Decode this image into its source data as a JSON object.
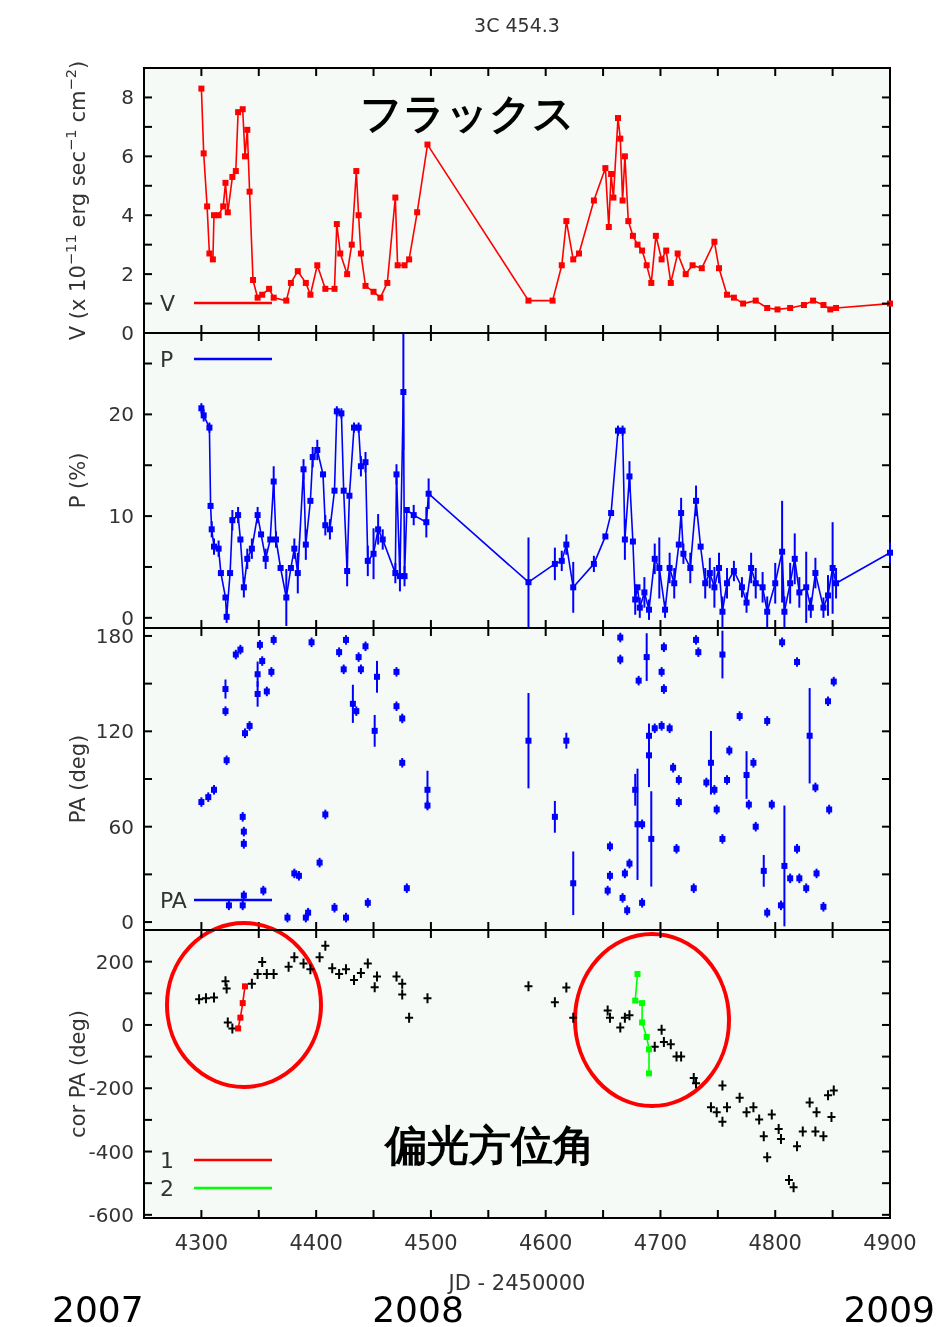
{
  "chart_data": [
    {
      "type": "line",
      "title": "3C 454.3",
      "ylabel": "V (x 10$^{−11}$ erg sec$^{−1}$ cm$^{−2}$)",
      "annotations": [
        "フラックス"
      ],
      "xlim": [
        4250,
        4900
      ],
      "ylim": [
        0,
        9
      ],
      "xticks": [
        4300,
        {
          "value": 4350,
          "label": null
        },
        4400,
        {
          "value": 4450,
          "label": null
        },
        4500,
        {
          "value": 4550,
          "label": null
        },
        4600,
        {
          "value": 4650,
          "label": null
        },
        4700,
        {
          "value": 4750,
          "label": null
        },
        4800,
        {
          "value": 4850,
          "label": null
        },
        4900
      ],
      "yticks": [
        0,
        {
          "value": 1,
          "label": null
        },
        2,
        {
          "value": 3,
          "label": null
        },
        4,
        {
          "value": 5,
          "label": null
        },
        6,
        {
          "value": 7,
          "label": null
        },
        8
      ],
      "tick_labels": "y",
      "grid": false,
      "legend": "bottom left",
      "series": [
        {
          "name": "V",
          "color": "#ff0000",
          "marker": "square",
          "x": [
            4300,
            4302,
            4305,
            4307,
            4310,
            4311,
            4315,
            4319,
            4321,
            4323,
            4327,
            4330,
            4332,
            4336,
            4338,
            4340,
            4342,
            4345,
            4349,
            4353,
            4359,
            4363,
            4374,
            4378,
            4384,
            4391,
            4395,
            4401,
            4408,
            4416,
            4418,
            4421,
            4427,
            4431,
            4435,
            4437,
            4439,
            4443,
            4450,
            4456,
            4462,
            4469,
            4471,
            4477,
            4481,
            4488,
            4497,
            4585,
            4606,
            4614,
            4618,
            4624,
            4629,
            4642,
            4652,
            4655,
            4657,
            4659,
            4663,
            4665,
            4667,
            4669,
            4672,
            4676,
            4680,
            4684,
            4688,
            4692,
            4696,
            4701,
            4705,
            4709,
            4715,
            4722,
            4728,
            4736,
            4747,
            4751,
            4758,
            4764,
            4772,
            4783,
            4793,
            4802,
            4813,
            4825,
            4833,
            4842,
            4848,
            4853,
            4900
          ],
          "values": [
            8.3,
            6.1,
            4.3,
            2.7,
            2.5,
            4.0,
            4.0,
            4.3,
            5.1,
            4.1,
            5.3,
            5.5,
            7.5,
            7.6,
            6.0,
            6.9,
            4.8,
            1.8,
            1.2,
            1.3,
            1.5,
            1.2,
            1.1,
            1.7,
            2.1,
            1.7,
            1.3,
            2.3,
            1.5,
            1.5,
            3.7,
            2.7,
            2.0,
            3.0,
            5.5,
            4.0,
            2.7,
            1.6,
            1.4,
            1.2,
            1.7,
            4.6,
            2.3,
            2.3,
            2.5,
            4.1,
            6.4,
            1.1,
            1.1,
            2.3,
            3.8,
            2.5,
            2.7,
            4.5,
            5.6,
            3.6,
            5.4,
            4.6,
            7.3,
            6.6,
            4.5,
            6.0,
            3.8,
            3.3,
            3.0,
            2.8,
            2.3,
            1.7,
            3.3,
            2.5,
            2.8,
            1.7,
            2.7,
            2.0,
            2.3,
            2.2,
            3.1,
            2.2,
            1.3,
            1.2,
            1.0,
            1.1,
            0.85,
            0.8,
            0.85,
            0.95,
            1.1,
            0.95,
            0.8,
            0.85,
            1.0
          ]
        }
      ]
    },
    {
      "type": "line",
      "ylabel": "P (%)",
      "xlim": [
        4250,
        4900
      ],
      "ylim": [
        -1,
        28
      ],
      "xticks": [
        4300,
        {
          "value": 4350,
          "label": null
        },
        4400,
        {
          "value": 4450,
          "label": null
        },
        4500,
        {
          "value": 4550,
          "label": null
        },
        4600,
        {
          "value": 4650,
          "label": null
        },
        4700,
        {
          "value": 4750,
          "label": null
        },
        4800,
        {
          "value": 4850,
          "label": null
        },
        4900
      ],
      "yticks": [
        0,
        {
          "value": 5,
          "label": null
        },
        10,
        {
          "value": 15,
          "label": null
        },
        20,
        {
          "value": 25,
          "label": null
        }
      ],
      "tick_labels": "y",
      "grid": false,
      "legend": "top left",
      "series": [
        {
          "name": "P",
          "color": "#0000ff",
          "marker": "square",
          "x": [
            4300,
            4302,
            4307,
            4308,
            4309,
            4311,
            4315,
            4317,
            4321,
            4322,
            4325,
            4327,
            4332,
            4334,
            4337,
            4340,
            4344,
            4349,
            4352,
            4356,
            4360,
            4363,
            4365,
            4369,
            4374,
            4378,
            4381,
            4384,
            4389,
            4391,
            4395,
            4397,
            4401,
            4406,
            4408,
            4412,
            4416,
            4418,
            4422,
            4424,
            4427,
            4429,
            4433,
            4437,
            4439,
            4443,
            4445,
            4450,
            4454,
            4458,
            4469,
            4470,
            4473,
            4476,
            4477,
            4479,
            4485,
            4496,
            4498,
            4585,
            4608,
            4614,
            4618,
            4624,
            4642,
            4652,
            4657,
            4663,
            4667,
            4669,
            4673,
            4676,
            4678,
            4680,
            4682,
            4686,
            4690,
            4695,
            4699,
            4704,
            4708,
            4712,
            4716,
            4718,
            4720,
            4726,
            4731,
            4735,
            4739,
            4743,
            4747,
            4751,
            4754,
            4758,
            4764,
            4771,
            4775,
            4779,
            4783,
            4789,
            4793,
            4800,
            4806,
            4808,
            4813,
            4817,
            4821,
            4827,
            4831,
            4835,
            4842,
            4846,
            4850,
            4853,
            4900
          ],
          "values": [
            20.6,
            19.9,
            18.7,
            11.0,
            8.7,
            7.0,
            6.8,
            4.4,
            2.0,
            0.1,
            4.4,
            9.6,
            10.1,
            7.7,
            3.0,
            5.8,
            6.8,
            10.1,
            8.2,
            5.8,
            7.7,
            13.4,
            7.7,
            4.9,
            2.0,
            4.9,
            6.8,
            4.4,
            14.6,
            7.2,
            11.5,
            15.8,
            16.5,
            14.1,
            9.1,
            8.7,
            12.5,
            20.3,
            20.1,
            12.5,
            4.6,
            12.0,
            18.7,
            18.7,
            14.9,
            15.3,
            5.6,
            6.3,
            8.7,
            7.7,
            4.4,
            14.1,
            4.1,
            22.2,
            4.1,
            10.6,
            10.1,
            9.4,
            12.2,
            3.5,
            5.3,
            5.6,
            7.2,
            3.0,
            5.3,
            8.0,
            10.3,
            18.4,
            18.4,
            7.7,
            13.9,
            7.5,
            1.8,
            3.0,
            1.0,
            2.5,
            0.8,
            5.8,
            4.9,
            0.8,
            4.9,
            3.4,
            7.2,
            10.3,
            6.3,
            4.9,
            11.5,
            7.0,
            3.4,
            4.4,
            3.0,
            4.9,
            0.6,
            3.4,
            4.6,
            3.0,
            1.5,
            4.9,
            3.4,
            3.0,
            0.6,
            3.4,
            6.5,
            0.6,
            3.4,
            5.8,
            2.5,
            3.0,
            1.0,
            4.4,
            1.0,
            2.2,
            4.9,
            3.4,
            6.4
          ],
          "errors": [
            0.5,
            0.6,
            0.5,
            null,
            0.8,
            0.8,
            0.8,
            null,
            null,
            0.6,
            null,
            1,
            0.8,
            null,
            1,
            1,
            1,
            0.8,
            null,
            1,
            null,
            1.5,
            0.8,
            null,
            2.8,
            null,
            1,
            2,
            1,
            1.5,
            null,
            1,
            1,
            null,
            1,
            1,
            null,
            0.5,
            0.5,
            null,
            1.5,
            null,
            0.5,
            0.5,
            1,
            1,
            1.5,
            2.5,
            1.5,
            1,
            1,
            1,
            1.5,
            5.7,
            1,
            null,
            1,
            1.5,
            1.5,
            4.4,
            1.6,
            1,
            1,
            2.5,
            0.8,
            null,
            null,
            0.5,
            0.5,
            2,
            1.5,
            null,
            1.5,
            null,
            1,
            1.5,
            1,
            1.5,
            3,
            0.8,
            1.5,
            1.5,
            null,
            1.5,
            1,
            1.5,
            1.5,
            null,
            1.5,
            1.5,
            2,
            1.5,
            1.5,
            1.5,
            1,
            1,
            1,
            1.5,
            1.5,
            1.5,
            1.5,
            2,
            5,
            1.5,
            2,
            2.5,
            1.5,
            3.5,
            1,
            1.5,
            1,
            2,
            4.5,
            1.5,
            1
          ]
        }
      ]
    },
    {
      "type": "scatter",
      "ylabel": "PA (deg)",
      "xlim": [
        4250,
        4900
      ],
      "ylim": [
        -5,
        185
      ],
      "xticks": [
        4300,
        {
          "value": 4350,
          "label": null
        },
        4400,
        {
          "value": 4450,
          "label": null
        },
        4500,
        {
          "value": 4550,
          "label": null
        },
        4600,
        {
          "value": 4650,
          "label": null
        },
        4700,
        {
          "value": 4750,
          "label": null
        },
        4800,
        {
          "value": 4850,
          "label": null
        },
        4900
      ],
      "yticks": [
        0,
        {
          "value": 30,
          "label": null
        },
        60,
        {
          "value": 90,
          "label": null
        },
        120,
        {
          "value": 150,
          "label": null
        },
        180
      ],
      "tick_labels": "y",
      "grid": false,
      "legend": "bottom left",
      "series": [
        {
          "name": "PA",
          "color": "#0000ff",
          "marker": "square",
          "x": [
            4300,
            4306,
            4311,
            4321,
            4321,
            4322,
            4324,
            4330,
            4334,
            4336,
            4337,
            4337,
            4338,
            4337,
            4336,
            4342,
            4349,
            4349,
            4351,
            4353,
            4354,
            4357,
            4361,
            4363,
            4375,
            4381,
            4385,
            4391,
            4393,
            4396,
            4403,
            4408,
            4416,
            4420,
            4424,
            4426,
            4426,
            4432,
            4435,
            4437,
            4439,
            4443,
            4445,
            4451,
            4453,
            4470,
            4470,
            4475,
            4475,
            4479,
            4497,
            4497,
            4585,
            4608,
            4618,
            4624,
            4654,
            4656,
            4656,
            4665,
            4665,
            4667,
            4669,
            4671,
            4673,
            4678,
            4680,
            4681,
            4684,
            4684,
            4688,
            4690,
            4690,
            4692,
            4695,
            4701,
            4701,
            4703,
            4703,
            4708,
            4711,
            4714,
            4716,
            4716,
            4729,
            4731,
            4733,
            4740,
            4744,
            4747,
            4749,
            4754,
            4754,
            4758,
            4760,
            4769,
            4775,
            4777,
            4781,
            4783,
            4790,
            4793,
            4793,
            4797,
            4805,
            4806,
            4808,
            4813,
            4819,
            4819,
            4821,
            4827,
            4830,
            4835,
            4836,
            4842,
            4846,
            4847,
            4851
          ],
          "values": [
            75.5,
            78.6,
            83.2,
            146.6,
            132.7,
            101.8,
            10.5,
            168.3,
            171.4,
            10.5,
            16.7,
            49.2,
            118.8,
            56.9,
            66.2,
            123.4,
            155.9,
            143.5,
            174.4,
            164.2,
            19.8,
            145.1,
            157.4,
            177.5,
            2.8,
            30.6,
            29.1,
            2.8,
            5.9,
            176,
            37.4,
            67.7,
            9.0,
            169.8,
            159,
            177.5,
            2.8,
            137.3,
            132.7,
            166.7,
            159,
            173.5,
            12.1,
            120.3,
            154.3,
            157.4,
            135.8,
            128.1,
            100.2,
            21.3,
            83.2,
            73.3,
            114.1,
            66.2,
            114.1,
            24.4,
            19.8,
            47.6,
            29.1,
            179,
            165.2,
            15.2,
            30.6,
            7.4,
            36.8,
            83.2,
            61.5,
            151.9,
            12.1,
            61.5,
            166.7,
            104.9,
            117.2,
            52.3,
            121.9,
            123.4,
            157.4,
            172.9,
            146.6,
            121.9,
            97.1,
            46.1,
            89.4,
            75.5,
            21.3,
            177.5,
            169.8,
            87.8,
            100.2,
            83.2,
            70.8,
            52.3,
            168.3,
            89.4,
            107.9,
            129.6,
            92.5,
            73.9,
            100.2,
            60,
            32.2,
            126.5,
            5.9,
            73.9,
            10.5,
            176,
            35.3,
            27.5,
            163.6,
            46.1,
            27.5,
            21.3,
            117.2,
            84.7,
            30.6,
            9.6,
            138.9,
            70.8,
            151.3
          ],
          "errors": [
            3,
            3,
            3,
            6,
            3,
            3,
            3,
            3,
            3,
            3,
            3,
            3,
            3,
            3,
            3,
            3,
            8,
            8,
            3,
            3,
            3,
            3,
            3,
            3,
            3,
            3,
            3,
            3,
            3,
            3,
            3,
            3,
            3,
            3,
            3,
            3,
            3,
            12,
            3,
            3,
            3,
            3,
            3,
            10,
            10,
            3,
            3,
            3,
            3,
            3,
            12,
            3,
            30,
            10,
            5,
            20,
            3,
            3,
            3,
            3,
            3,
            3,
            3,
            3,
            3,
            10,
            35,
            3,
            3,
            3,
            15,
            20,
            3,
            30,
            3,
            3,
            3,
            3,
            3,
            3,
            3,
            3,
            3,
            3,
            3,
            3,
            3,
            3,
            20,
            3,
            3,
            3,
            15,
            3,
            3,
            3,
            15,
            3,
            3,
            3,
            10,
            3,
            3,
            3,
            3,
            3,
            38,
            3,
            3,
            3,
            3,
            3,
            30,
            3,
            3,
            3,
            3,
            3,
            3
          ]
        }
      ]
    },
    {
      "type": "scatter",
      "ylabel": "cor PA (deg)",
      "xlabel": "JD - 2450000",
      "annotations": [
        "偏光方位角",
        "2007",
        "2008",
        "2009"
      ],
      "xlim": [
        4250,
        4900
      ],
      "ylim": [
        -610,
        300
      ],
      "xticks": [
        4300,
        {
          "value": 4350,
          "label": null
        },
        4400,
        {
          "value": 4450,
          "label": null
        },
        4500,
        {
          "value": 4550,
          "label": null
        },
        4600,
        {
          "value": 4650,
          "label": null
        },
        4700,
        {
          "value": 4750,
          "label": null
        },
        4800,
        {
          "value": 4850,
          "label": null
        },
        4900
      ],
      "yticks": [
        -600,
        {
          "value": -500,
          "label": null
        },
        -400,
        {
          "value": -300,
          "label": null
        },
        -200,
        {
          "value": -100,
          "label": null
        },
        0,
        {
          "value": 100,
          "label": null
        },
        200
      ],
      "grid": false,
      "legend": "bottom left",
      "series": [
        {
          "color": "#000000",
          "marker": "cross",
          "x": [
            4298,
            4304,
            4311,
            4321,
            4322,
            4323,
            4327,
            4344,
            4349,
            4353,
            4357,
            4363,
            4376,
            4381,
            4389,
            4395,
            4403,
            4408,
            4414,
            4420,
            4426,
            4433,
            4439,
            4445,
            4451,
            4453,
            4470,
            4475,
            4475,
            4481,
            4497,
            4585,
            4608,
            4618,
            4624,
            4654,
            4656,
            4665,
            4669,
            4673,
            4695,
            4701,
            4703,
            4709,
            4714,
            4718,
            4729,
            4731,
            4744,
            4749,
            4754,
            4754,
            4758,
            4769,
            4775,
            4781,
            4786,
            4790,
            4793,
            4797,
            4803,
            4805,
            4812,
            4816,
            4819,
            4824,
            4830,
            4835,
            4836,
            4842,
            4846,
            4849,
            4851
          ],
          "values": [
            81,
            84,
            87,
            138,
            115,
            8,
            -11,
            130,
            161,
            199,
            161,
            161,
            184,
            214,
            194,
            176,
            214,
            250,
            179,
            161,
            176,
            142,
            164,
            194,
            119,
            153,
            153,
            96,
            130,
            23,
            84,
            122,
            72,
            118,
            23,
            46,
            23,
            -8,
            23,
            31,
            -69,
            -15,
            -54,
            -61,
            -100,
            -100,
            -168,
            -184,
            -260,
            -276,
            -191,
            -306,
            -260,
            -230,
            -276,
            -260,
            -299,
            -352,
            -418,
            -283,
            -329,
            -360,
            -490,
            -513,
            -383,
            -337,
            -245,
            -337,
            -276,
            -352,
            -222,
            -291,
            -207
          ]
        },
        {
          "name": "1",
          "type": "line",
          "color": "#ff0000",
          "marker": "square",
          "x": [
            4332,
            4334,
            4336,
            4338
          ],
          "values": [
            -11,
            23,
            69,
            122
          ]
        },
        {
          "name": "2",
          "type": "line",
          "color": "#00ff00",
          "marker": "square",
          "x": [
            4680,
            4678,
            4684,
            4684,
            4688,
            4690,
            4690
          ],
          "values": [
            161,
            77,
            69,
            8,
            -38,
            -77,
            -153
          ]
        }
      ]
    }
  ]
}
